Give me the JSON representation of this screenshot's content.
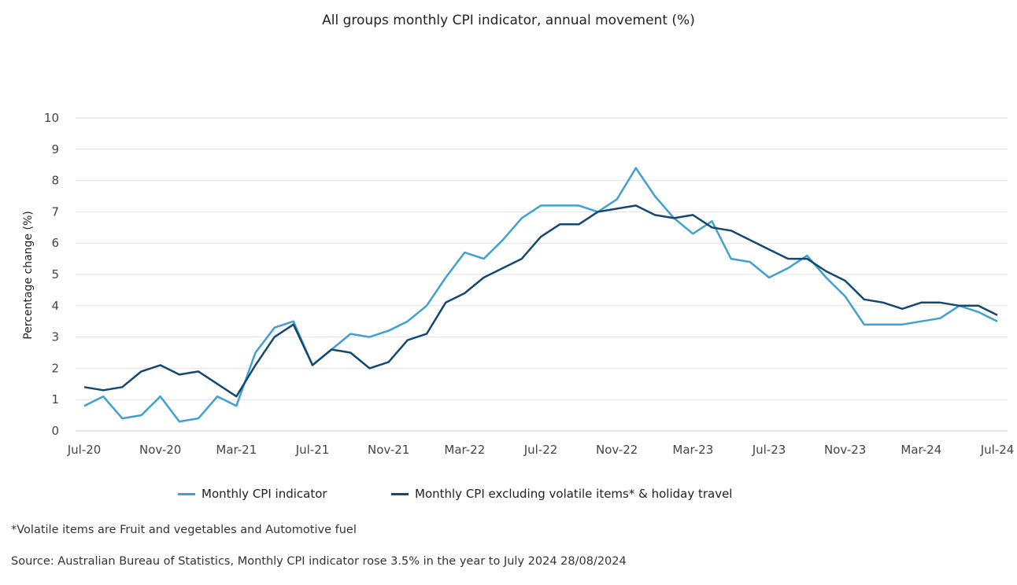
{
  "chart_data": {
    "type": "line",
    "title": "All groups monthly CPI indicator, annual movement (%)",
    "ylabel": "Percentage change (%)",
    "xlabel": "",
    "ylim": [
      0,
      10
    ],
    "yticks": [
      0,
      1,
      2,
      3,
      4,
      5,
      6,
      7,
      8,
      9,
      10
    ],
    "grid": true,
    "legend_position": "bottom",
    "x": [
      "Jul-20",
      "Aug-20",
      "Sep-20",
      "Oct-20",
      "Nov-20",
      "Dec-20",
      "Jan-21",
      "Feb-21",
      "Mar-21",
      "Apr-21",
      "May-21",
      "Jun-21",
      "Jul-21",
      "Aug-21",
      "Sep-21",
      "Oct-21",
      "Nov-21",
      "Dec-21",
      "Jan-22",
      "Feb-22",
      "Mar-22",
      "Apr-22",
      "May-22",
      "Jun-22",
      "Jul-22",
      "Aug-22",
      "Sep-22",
      "Oct-22",
      "Nov-22",
      "Dec-22",
      "Jan-23",
      "Feb-23",
      "Mar-23",
      "Apr-23",
      "May-23",
      "Jun-23",
      "Jul-23",
      "Aug-23",
      "Sep-23",
      "Oct-23",
      "Nov-23",
      "Dec-23",
      "Jan-24",
      "Feb-24",
      "Mar-24",
      "Apr-24",
      "May-24",
      "Jun-24",
      "Jul-24"
    ],
    "xtick_labels": [
      "Jul-20",
      "Nov-20",
      "Mar-21",
      "Jul-21",
      "Nov-21",
      "Mar-22",
      "Jul-22",
      "Nov-22",
      "Mar-23",
      "Jul-23",
      "Nov-23",
      "Mar-24",
      "Jul-24"
    ],
    "series": [
      {
        "name": "Monthly CPI indicator",
        "color": "#3fa0d2",
        "values": [
          0.8,
          1.1,
          0.4,
          0.5,
          1.1,
          0.3,
          0.4,
          1.1,
          0.8,
          2.5,
          3.3,
          3.5,
          2.1,
          2.6,
          3.1,
          3.0,
          3.2,
          3.5,
          4.0,
          4.9,
          5.7,
          5.5,
          6.1,
          6.8,
          7.2,
          7.2,
          7.2,
          7.0,
          7.4,
          8.4,
          7.5,
          6.8,
          6.3,
          6.7,
          5.5,
          5.4,
          4.9,
          5.2,
          5.6,
          4.9,
          4.3,
          3.4,
          3.4,
          3.4,
          3.5,
          3.6,
          4.0,
          3.8,
          3.5
        ]
      },
      {
        "name": "Monthly CPI excluding volatile items* & holiday travel",
        "color": "#144870",
        "values": [
          1.4,
          1.3,
          1.4,
          1.9,
          2.1,
          1.8,
          1.9,
          1.5,
          1.1,
          2.1,
          3.0,
          3.4,
          2.1,
          2.6,
          2.5,
          2.0,
          2.2,
          2.9,
          3.1,
          4.1,
          4.4,
          4.9,
          5.2,
          5.5,
          6.2,
          6.6,
          6.6,
          7.0,
          7.1,
          7.2,
          6.9,
          6.8,
          6.9,
          6.5,
          6.4,
          6.1,
          5.8,
          5.5,
          5.5,
          5.1,
          4.8,
          4.2,
          4.1,
          3.9,
          4.1,
          4.1,
          4.0,
          4.0,
          3.7
        ]
      }
    ]
  },
  "footnote": "*Volatile items are Fruit and vegetables and Automotive fuel",
  "source": "Source: Australian Bureau of Statistics, Monthly CPI indicator rose 3.5% in the year to July 2024 28/08/2024"
}
